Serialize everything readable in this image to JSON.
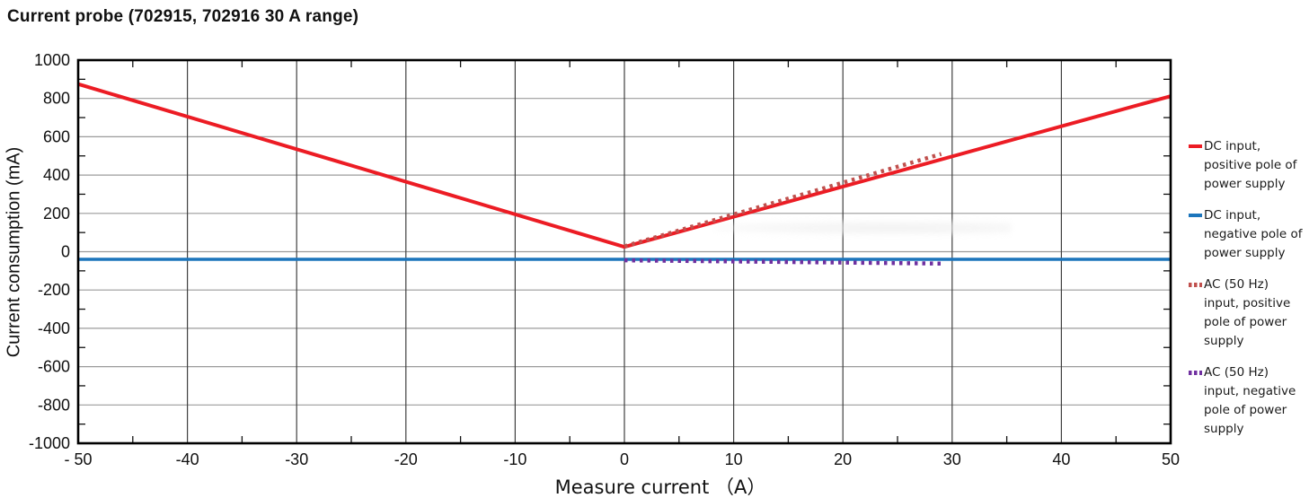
{
  "title": "Current probe (702915, 702916 30 A range)",
  "chart_data": {
    "type": "line",
    "title": "Current probe (702915, 702916 30 A range)",
    "xlabel": "Measure current （A）",
    "ylabel": "Current consumption (mA)",
    "xlim": [
      -50,
      50
    ],
    "ylim": [
      -1000,
      1000
    ],
    "x_major_step": 10,
    "x_minor_step": 5,
    "y_major_step": 200,
    "y_minor_step": 100,
    "grid": true,
    "legend_position": "right",
    "x_tick_labels": [
      "- 50",
      "-40",
      "-30",
      "-20",
      "-10",
      "0",
      "10",
      "20",
      "30",
      "40",
      "50"
    ],
    "y_tick_labels": [
      "1000",
      "800",
      "600",
      "400",
      "200",
      "0",
      "-200",
      "-400",
      "-600",
      "-800",
      "-1000"
    ],
    "series": [
      {
        "key": "dc-positive",
        "name": "DC input,\npositive pole of\npower supply",
        "style": "solid",
        "color": "#ec1c24",
        "width": 4,
        "points": [
          [
            -50,
            875
          ],
          [
            0,
            25
          ],
          [
            50,
            812
          ]
        ]
      },
      {
        "key": "dc-negative",
        "name": "DC input,\nnegative pole of\npower supply",
        "style": "solid",
        "color": "#1c75bc",
        "width": 3.5,
        "points": [
          [
            -50,
            -40
          ],
          [
            50,
            -40
          ]
        ]
      },
      {
        "key": "ac-positive",
        "name": "AC (50 Hz)\ninput, positive\npole of power\nsupply",
        "style": "dotted",
        "color": "#c0504d",
        "width": 4.5,
        "points": [
          [
            0,
            28
          ],
          [
            29,
            510
          ]
        ]
      },
      {
        "key": "ac-negative",
        "name": "AC (50 Hz)\ninput, negative\npole of power\nsupply",
        "style": "dotted",
        "color": "#7030a0",
        "width": 4.5,
        "points": [
          [
            0,
            -45
          ],
          [
            29,
            -62
          ]
        ]
      }
    ]
  }
}
